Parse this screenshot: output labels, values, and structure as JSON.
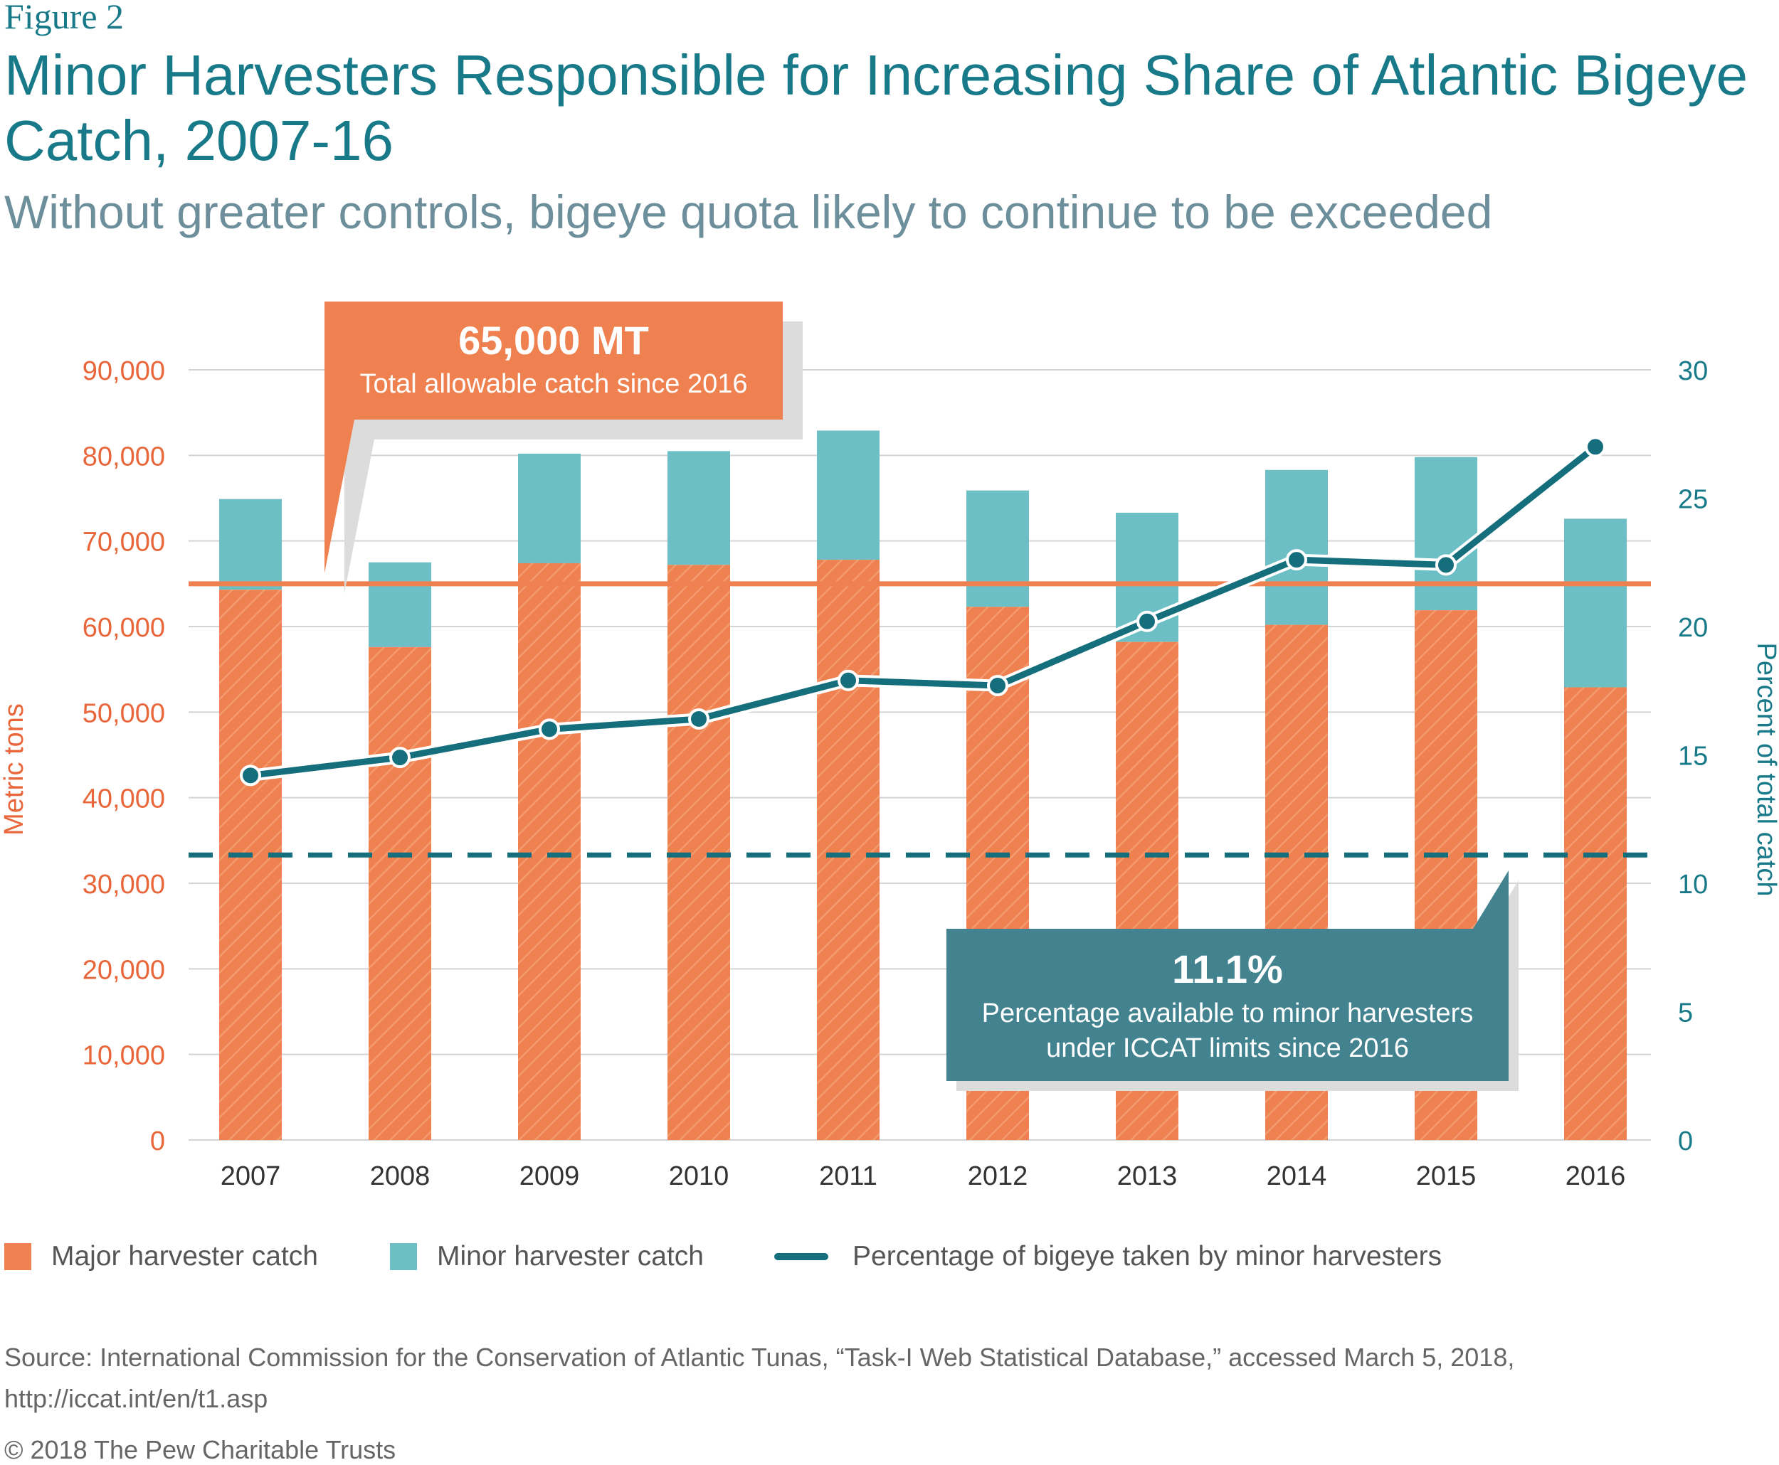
{
  "figure_label": "Figure 2",
  "title": "Minor Harvesters Responsible for Increasing Share of Atlantic Bigeye Catch, 2007-16",
  "subtitle": "Without greater controls, bigeye quota likely to continue to be exceeded",
  "colors": {
    "major": "#ef8150",
    "minor": "#6dbfc6",
    "line": "#156e7b",
    "callout_tac": "#ef8150",
    "callout_pct": "#42838f",
    "left_axis": "#e8663a",
    "right_axis": "#187a89"
  },
  "chart_data": {
    "type": "bar",
    "stacked": true,
    "categories": [
      "2007",
      "2008",
      "2009",
      "2010",
      "2011",
      "2012",
      "2013",
      "2014",
      "2015",
      "2016"
    ],
    "series": [
      {
        "name": "Major harvester catch",
        "values": [
          64300,
          57600,
          67400,
          67200,
          67800,
          62300,
          58200,
          60200,
          61900,
          52900
        ]
      },
      {
        "name": "Minor harvester catch",
        "values": [
          10600,
          9900,
          12800,
          13300,
          15100,
          13600,
          15100,
          18100,
          17900,
          19700
        ]
      }
    ],
    "line_series": {
      "name": "Percentage of bigeye taken by minor harvesters",
      "axis": "right",
      "values": [
        14.2,
        14.9,
        16.0,
        16.4,
        17.9,
        17.7,
        20.2,
        22.6,
        22.4,
        27.0
      ]
    },
    "reference_lines": [
      {
        "axis": "left",
        "value": 65000,
        "style": "solid"
      },
      {
        "axis": "right",
        "value": 11.1,
        "style": "dashed"
      }
    ],
    "ylabel": "Metric tons",
    "y2label": "Percent of total catch",
    "ylim": [
      0,
      90000
    ],
    "y2lim": [
      0,
      30
    ],
    "yticks": [
      "0",
      "10,000",
      "20,000",
      "30,000",
      "40,000",
      "50,000",
      "60,000",
      "70,000",
      "80,000",
      "90,000"
    ],
    "y2ticks": [
      "0",
      "5",
      "10",
      "15",
      "20",
      "25",
      "30"
    ],
    "grid": "horizontal",
    "legend_position": "bottom"
  },
  "callouts": {
    "tac": {
      "value": "65,000 MT",
      "text": "Total allowable catch since 2016"
    },
    "pct": {
      "value": "11.1%",
      "line1": "Percentage available to minor harvesters",
      "line2": "under ICCAT limits since 2016"
    }
  },
  "legend": {
    "major": "Major harvester catch",
    "minor": "Minor harvester catch",
    "line": "Percentage of bigeye taken by minor harvesters"
  },
  "source": "Source: International Commission for the Conservation of Atlantic Tunas, “Task-I Web Statistical Database,” accessed March 5, 2018, http://iccat.int/en/t1.asp",
  "copyright": "© 2018 The Pew Charitable Trusts"
}
